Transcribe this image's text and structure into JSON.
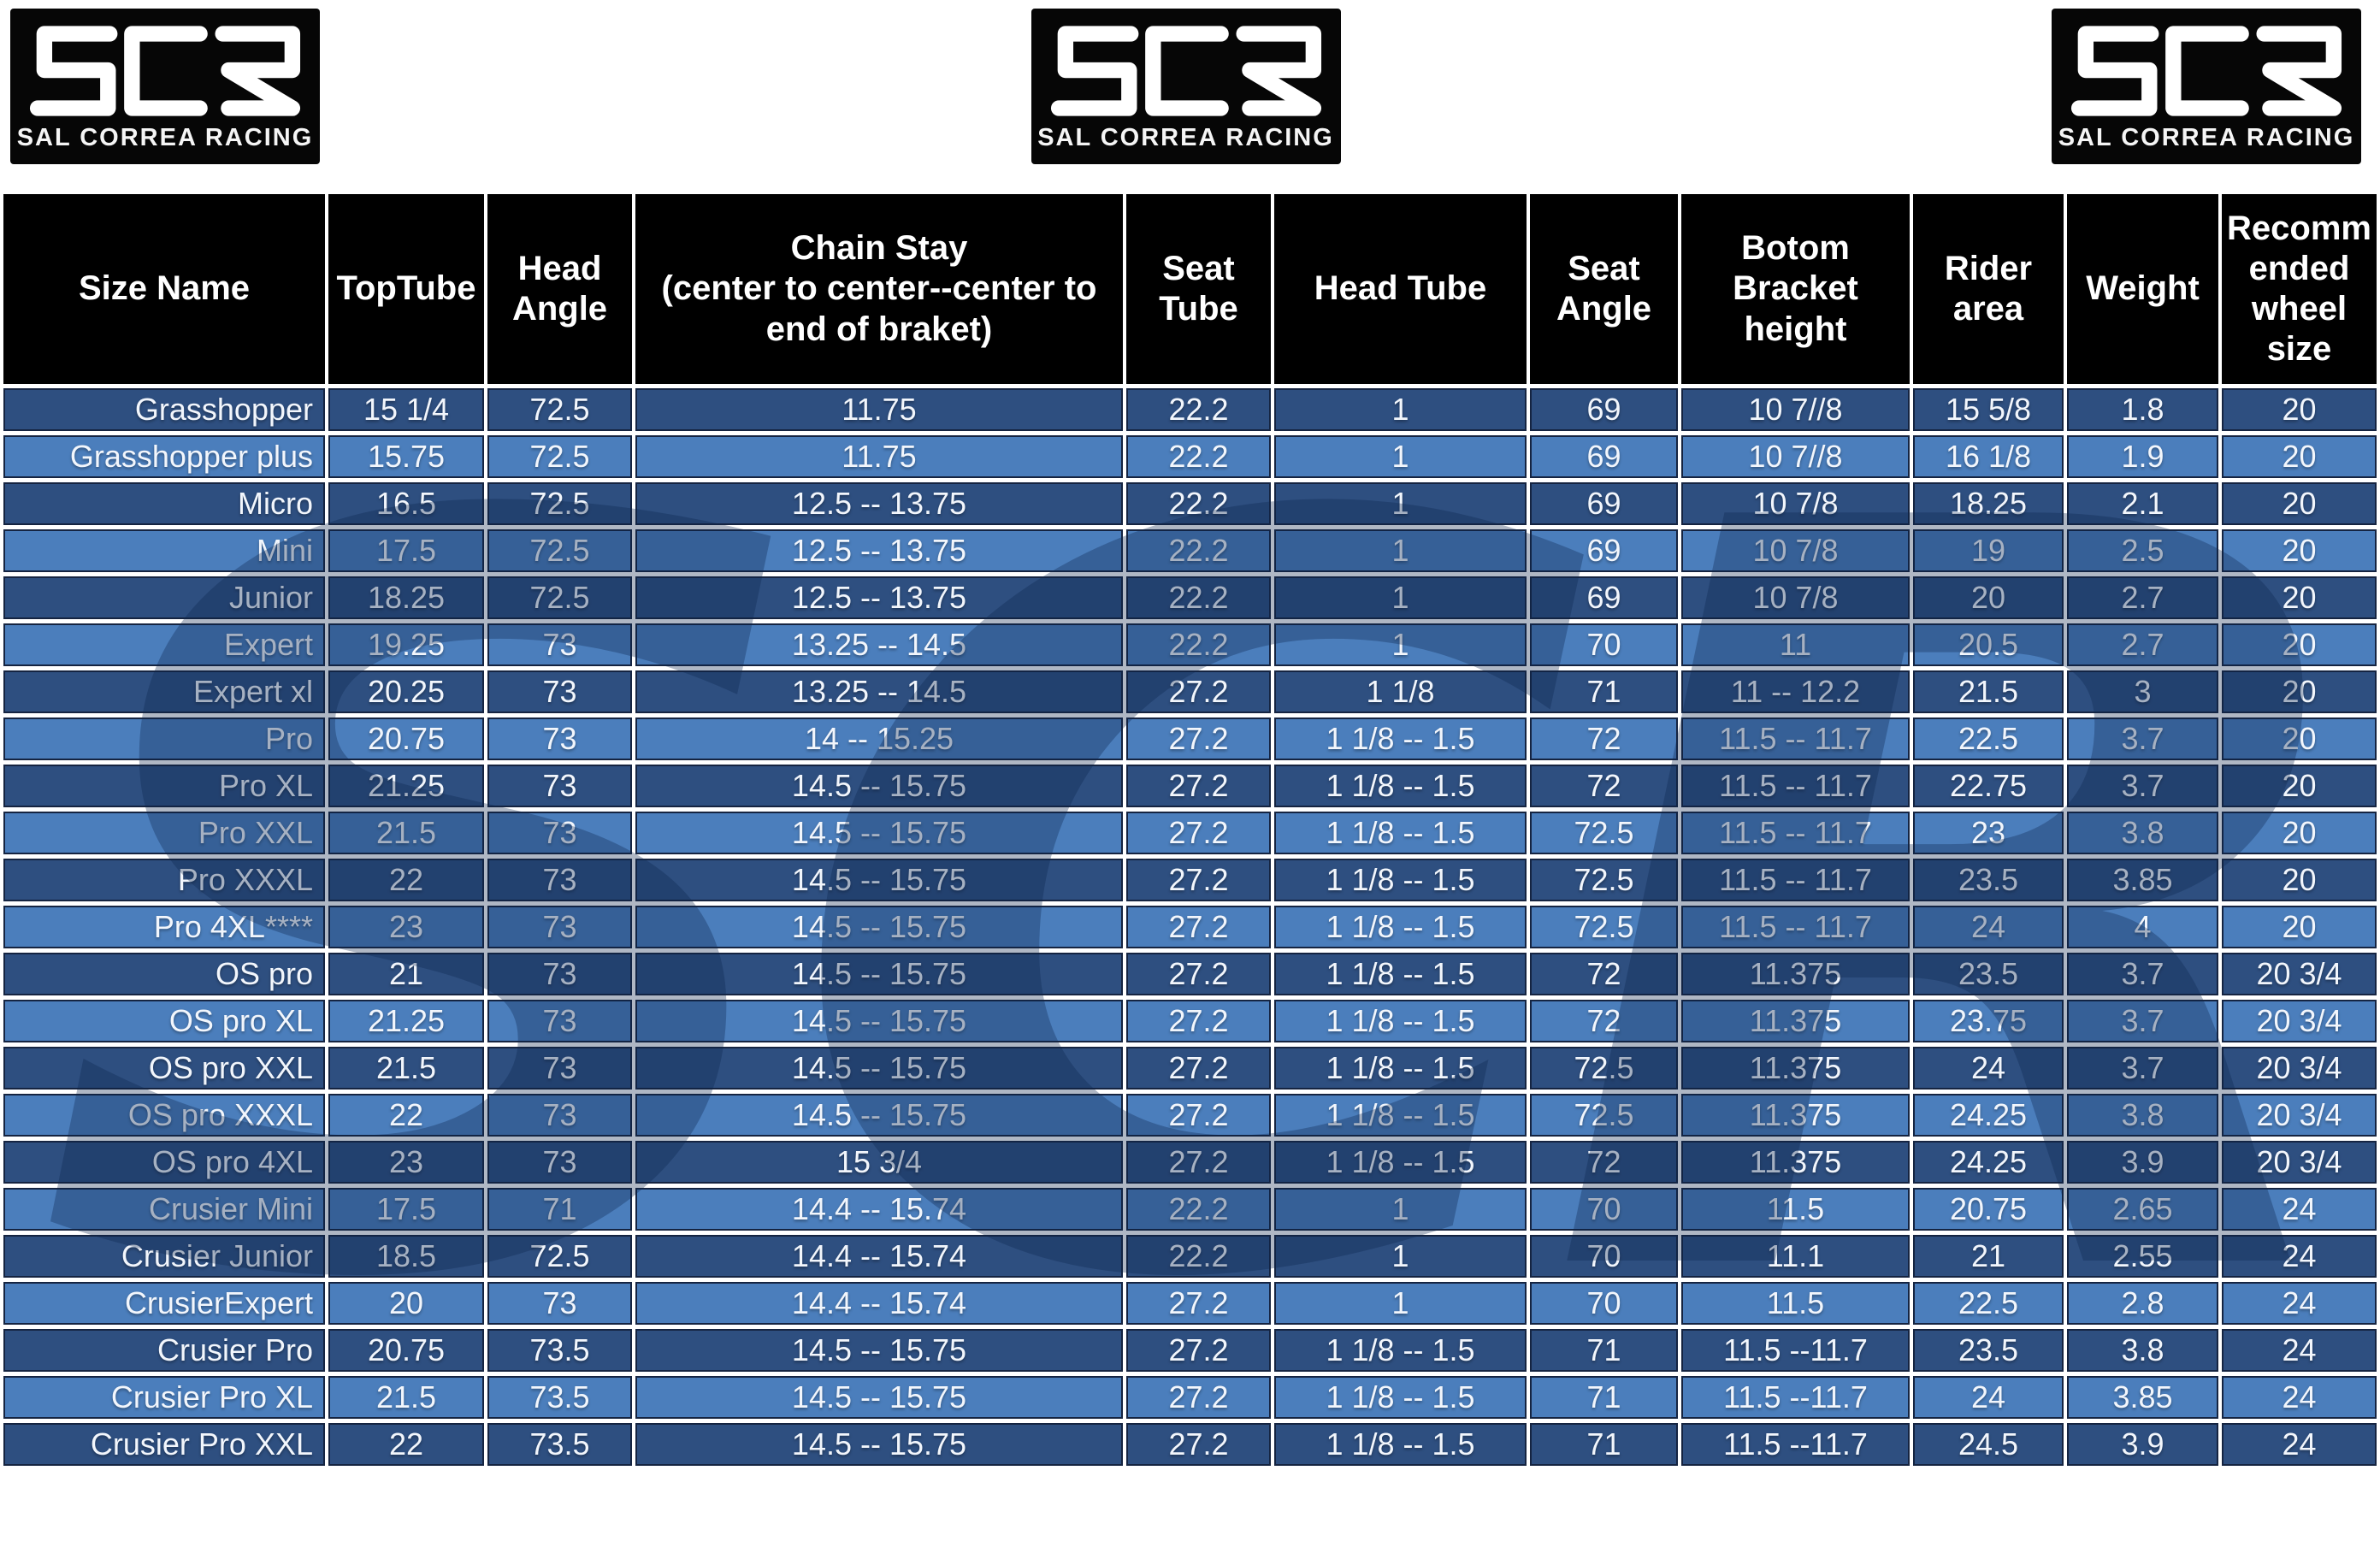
{
  "brand": {
    "logo_text": "SCR",
    "logo_subtitle": "SAL CORREA RACING"
  },
  "watermark_text": "SCR",
  "colors": {
    "page_bg": "#ffffff",
    "header_bg": "#000000",
    "row_dark": "#2e4f80",
    "row_light": "#4b7ebc",
    "cell_outline": "#152441",
    "grid_gap": "#ffffff",
    "text": "#f2f6fc",
    "watermark": "#0d254d"
  },
  "table": {
    "columns": [
      "Size Name",
      "TopTube",
      "Head Angle",
      "Chain Stay\n(center to center--center to\nend of braket)",
      "Seat Tube",
      "Head Tube",
      "Seat Angle",
      "Botom Bracket height",
      "Rider area",
      "Weight",
      "Recomm ended wheel size"
    ],
    "rows": [
      [
        "Grasshopper",
        "15 1/4",
        "72.5",
        "11.75",
        "22.2",
        "1",
        "69",
        "10 7//8",
        "15 5/8",
        "1.8",
        "20"
      ],
      [
        "Grasshopper plus",
        "15.75",
        "72.5",
        "11.75",
        "22.2",
        "1",
        "69",
        "10 7//8",
        "16 1/8",
        "1.9",
        "20"
      ],
      [
        "Micro",
        "16.5",
        "72.5",
        "12.5 -- 13.75",
        "22.2",
        "1",
        "69",
        "10 7/8",
        "18.25",
        "2.1",
        "20"
      ],
      [
        "Mini",
        "17.5",
        "72.5",
        "12.5 -- 13.75",
        "22.2",
        "1",
        "69",
        "10 7/8",
        "19",
        "2.5",
        "20"
      ],
      [
        "Junior",
        "18.25",
        "72.5",
        "12.5 -- 13.75",
        "22.2",
        "1",
        "69",
        "10 7/8",
        "20",
        "2.7",
        "20"
      ],
      [
        "Expert",
        "19.25",
        "73",
        "13.25 -- 14.5",
        "22.2",
        "1",
        "70",
        "11",
        "20.5",
        "2.7",
        "20"
      ],
      [
        "Expert xl",
        "20.25",
        "73",
        "13.25 -- 14.5",
        "27.2",
        "1 1/8",
        "71",
        "11 -- 12.2",
        "21.5",
        "3",
        "20"
      ],
      [
        "Pro",
        "20.75",
        "73",
        "14 -- 15.25",
        "27.2",
        "1 1/8 -- 1.5",
        "72",
        "11.5 -- 11.7",
        "22.5",
        "3.7",
        "20"
      ],
      [
        "Pro XL",
        "21.25",
        "73",
        "14.5 -- 15.75",
        "27.2",
        "1 1/8 -- 1.5",
        "72",
        "11.5 -- 11.7",
        "22.75",
        "3.7",
        "20"
      ],
      [
        "Pro XXL",
        "21.5",
        "73",
        "14.5 -- 15.75",
        "27.2",
        "1 1/8 -- 1.5",
        "72.5",
        "11.5 -- 11.7",
        "23",
        "3.8",
        "20"
      ],
      [
        "Pro XXXL",
        "22",
        "73",
        "14.5 -- 15.75",
        "27.2",
        "1 1/8 -- 1.5",
        "72.5",
        "11.5 -- 11.7",
        "23.5",
        "3.85",
        "20"
      ],
      [
        "Pro 4XL****",
        "23",
        "73",
        "14.5 -- 15.75",
        "27.2",
        "1 1/8 -- 1.5",
        "72.5",
        "11.5 -- 11.7",
        "24",
        "4",
        "20"
      ],
      [
        "OS pro",
        "21",
        "73",
        "14.5 -- 15.75",
        "27.2",
        "1 1/8 -- 1.5",
        "72",
        "11.375",
        "23.5",
        "3.7",
        "20 3/4"
      ],
      [
        "OS pro XL",
        "21.25",
        "73",
        "14.5 -- 15.75",
        "27.2",
        "1 1/8 -- 1.5",
        "72",
        "11.375",
        "23.75",
        "3.7",
        "20 3/4"
      ],
      [
        "OS pro XXL",
        "21.5",
        "73",
        "14.5 -- 15.75",
        "27.2",
        "1 1/8 -- 1.5",
        "72.5",
        "11.375",
        "24",
        "3.7",
        "20 3/4"
      ],
      [
        "OS pro XXXL",
        "22",
        "73",
        "14.5 -- 15.75",
        "27.2",
        "1 1/8 -- 1.5",
        "72.5",
        "11.375",
        "24.25",
        "3.8",
        "20 3/4"
      ],
      [
        "OS pro 4XL",
        "23",
        "73",
        "15 3/4",
        "27.2",
        "1 1/8 -- 1.5",
        "72",
        "11.375",
        "24.25",
        "3.9",
        "20 3/4"
      ],
      [
        "Crusier Mini",
        "17.5",
        "71",
        "14.4 -- 15.74",
        "22.2",
        "1",
        "70",
        "11.5",
        "20.75",
        "2.65",
        "24"
      ],
      [
        "Crusier Junior",
        "18.5",
        "72.5",
        "14.4 -- 15.74",
        "22.2",
        "1",
        "70",
        "11.1",
        "21",
        "2.55",
        "24"
      ],
      [
        "CrusierExpert",
        "20",
        "73",
        "14.4 -- 15.74",
        "27.2",
        "1",
        "70",
        "11.5",
        "22.5",
        "2.8",
        "24"
      ],
      [
        "Crusier Pro",
        "20.75",
        "73.5",
        "14.5 -- 15.75",
        "27.2",
        "1 1/8 -- 1.5",
        "71",
        "11.5 --11.7",
        "23.5",
        "3.8",
        "24"
      ],
      [
        "Crusier Pro XL",
        "21.5",
        "73.5",
        "14.5 -- 15.75",
        "27.2",
        "1 1/8 -- 1.5",
        "71",
        "11.5 --11.7",
        "24",
        "3.85",
        "24"
      ],
      [
        "Crusier Pro XXL",
        "22",
        "73.5",
        "14.5 -- 15.75",
        "27.2",
        "1 1/8 -- 1.5",
        "71",
        "11.5 --11.7",
        "24.5",
        "3.9",
        "24"
      ]
    ]
  }
}
